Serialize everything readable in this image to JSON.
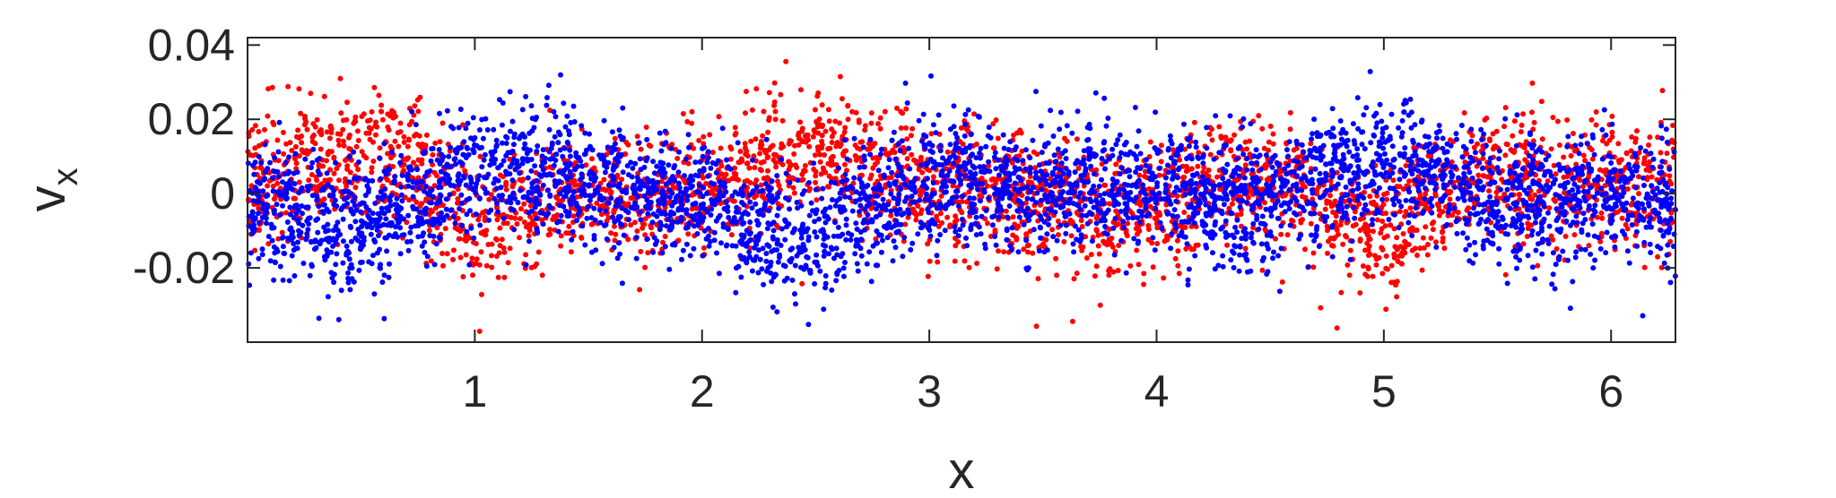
{
  "chart_data": {
    "type": "scatter",
    "xlabel": "x",
    "ylabel": "v",
    "ylabel_subscript": "x",
    "xlim": [
      0,
      6.2832
    ],
    "ylim": [
      -0.04,
      0.042
    ],
    "x_ticks": [
      1,
      2,
      3,
      4,
      5,
      6
    ],
    "x_tick_labels": [
      "1",
      "2",
      "3",
      "4",
      "5",
      "6"
    ],
    "y_ticks": [
      -0.02,
      0,
      0.02,
      0.04
    ],
    "y_tick_labels": [
      "-0.02",
      "0",
      "0.02",
      "0.04"
    ],
    "grid": false,
    "series": [
      {
        "color": "#ff0000",
        "n_points": 3200,
        "noise_sd": 0.0085,
        "mean_profile": [
          [
            0,
            0.003
          ],
          [
            0.25,
            0.006
          ],
          [
            0.5,
            0.012
          ],
          [
            0.75,
            0.004
          ],
          [
            1.0,
            -0.009
          ],
          [
            1.25,
            -0.004
          ],
          [
            1.5,
            0.001
          ],
          [
            1.75,
            -0.002
          ],
          [
            2.0,
            0.0
          ],
          [
            2.25,
            0.006
          ],
          [
            2.5,
            0.012
          ],
          [
            2.75,
            0.007
          ],
          [
            3.0,
            0.001
          ],
          [
            3.25,
            0.0
          ],
          [
            3.5,
            -0.002
          ],
          [
            3.75,
            -0.006
          ],
          [
            4.0,
            -0.003
          ],
          [
            4.25,
            0.004
          ],
          [
            4.5,
            0.004
          ],
          [
            4.75,
            -0.004
          ],
          [
            5.0,
            -0.011
          ],
          [
            5.25,
            -0.002
          ],
          [
            5.5,
            0.006
          ],
          [
            5.75,
            0.004
          ],
          [
            6.0,
            0.002
          ],
          [
            6.2832,
            0.003
          ]
        ]
      },
      {
        "color": "#0000ff",
        "n_points": 3900,
        "noise_sd": 0.0085,
        "mean_profile": [
          [
            0,
            -0.004
          ],
          [
            0.25,
            -0.006
          ],
          [
            0.5,
            -0.01
          ],
          [
            0.75,
            -0.002
          ],
          [
            1.0,
            0.008
          ],
          [
            1.25,
            0.008
          ],
          [
            1.5,
            0.002
          ],
          [
            1.75,
            0.002
          ],
          [
            2.0,
            -0.004
          ],
          [
            2.25,
            -0.01
          ],
          [
            2.5,
            -0.012
          ],
          [
            2.75,
            -0.003
          ],
          [
            3.0,
            0.004
          ],
          [
            3.25,
            0.003
          ],
          [
            3.5,
            0.001
          ],
          [
            3.75,
            0.002
          ],
          [
            4.0,
            0.003
          ],
          [
            4.25,
            -0.002
          ],
          [
            4.5,
            -0.003
          ],
          [
            4.75,
            0.004
          ],
          [
            5.0,
            0.01
          ],
          [
            5.25,
            0.004
          ],
          [
            5.5,
            -0.004
          ],
          [
            5.75,
            -0.002
          ],
          [
            6.0,
            0.0
          ],
          [
            6.2832,
            -0.003
          ]
        ]
      }
    ]
  }
}
